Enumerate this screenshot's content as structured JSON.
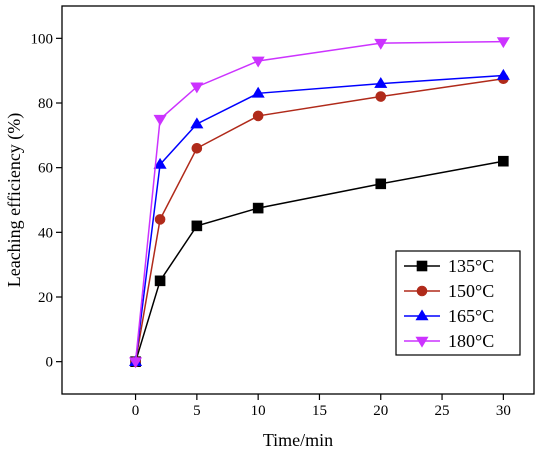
{
  "chart_data": {
    "type": "line",
    "title": "",
    "xlabel": "Time/min",
    "ylabel": "Leaching efficiency (%)",
    "xlim": [
      -6,
      32.5
    ],
    "ylim": [
      -10,
      110
    ],
    "xticks": [
      0,
      5,
      10,
      15,
      20,
      25,
      30
    ],
    "yticks": [
      0,
      20,
      40,
      60,
      80,
      100
    ],
    "grid": false,
    "legend": "bottom-right",
    "x": [
      0,
      2,
      5,
      10,
      20,
      30
    ],
    "series": [
      {
        "name": "135°C",
        "marker": "square",
        "color": "#000000",
        "values": [
          0,
          25,
          42,
          47.5,
          55,
          62
        ]
      },
      {
        "name": "150°C",
        "marker": "circle",
        "color": "#b02a1a",
        "values": [
          0,
          44,
          66,
          76,
          82,
          87.5
        ]
      },
      {
        "name": "165°C",
        "marker": "triangle-up",
        "color": "#0000ff",
        "values": [
          0,
          61,
          73.5,
          83,
          86,
          88.5
        ]
      },
      {
        "name": "180°C",
        "marker": "triangle-down",
        "color": "#cc33ff",
        "values": [
          0,
          75,
          85,
          93,
          98.5,
          99
        ]
      }
    ]
  }
}
